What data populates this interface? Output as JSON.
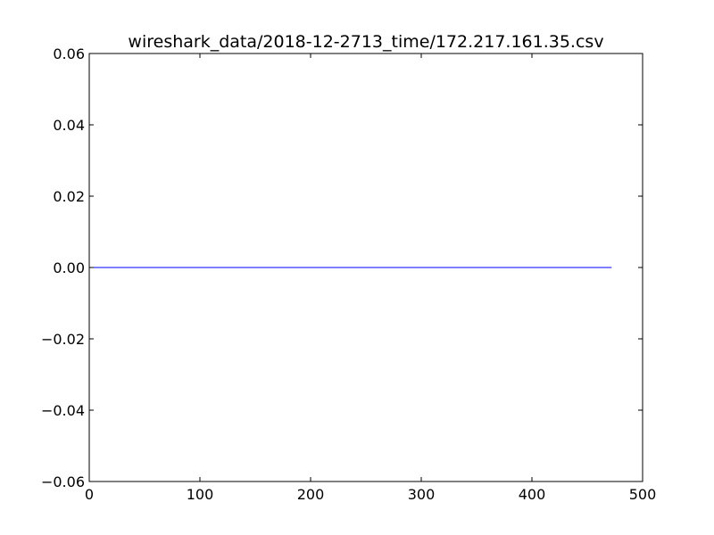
{
  "chart_data": {
    "type": "line",
    "title": "wireshark_data/2018-12-2713_time/172.217.161.35.csv",
    "xlabel": "",
    "ylabel": "",
    "xlim": [
      0,
      500
    ],
    "ylim": [
      -0.06,
      0.06
    ],
    "xticks": [
      0,
      100,
      200,
      300,
      400,
      500
    ],
    "xtick_labels": [
      "0",
      "100",
      "200",
      "300",
      "400",
      "500"
    ],
    "yticks": [
      -0.06,
      -0.04,
      -0.02,
      0.0,
      0.02,
      0.04,
      0.06
    ],
    "ytick_labels": [
      "−0.06",
      "−0.04",
      "−0.02",
      "0.00",
      "0.02",
      "0.04",
      "0.06"
    ],
    "grid": false,
    "series": [
      {
        "color": "#0000ff",
        "x": [
          0,
          472
        ],
        "y": [
          0,
          0
        ]
      }
    ]
  }
}
